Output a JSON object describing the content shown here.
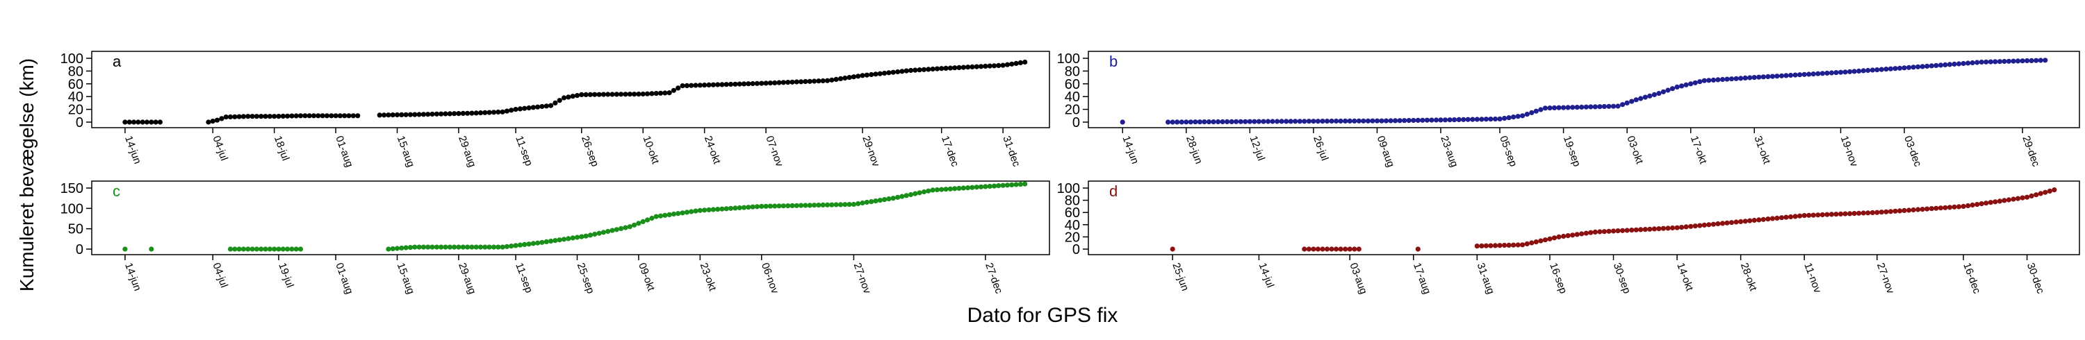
{
  "figure": {
    "ylabel": "Kumuleret bevægelse (km)",
    "xlabel": "Dato for GPS fix"
  },
  "chart_data": [
    {
      "type": "scatter",
      "panel_label": "a",
      "color": "#000000",
      "ylim": [
        0,
        100
      ],
      "yticks": [
        0,
        20,
        40,
        60,
        80,
        100
      ],
      "xlim": [
        "2021-06-08",
        "2022-01-09"
      ],
      "xticks": [
        "14-jun",
        "04-jul",
        "18-jul",
        "01-aug",
        "15-aug",
        "29-aug",
        "11-sep",
        "26-sep",
        "10-okt",
        "24-okt",
        "07-nov",
        "29-nov",
        "17-dec",
        "31-dec"
      ],
      "xtick_dates": [
        "2021-06-14",
        "2021-07-04",
        "2021-07-18",
        "2021-08-01",
        "2021-08-15",
        "2021-08-29",
        "2021-09-11",
        "2021-09-26",
        "2021-10-10",
        "2021-10-24",
        "2021-11-07",
        "2021-11-29",
        "2021-12-17",
        "2021-12-31"
      ],
      "anchors": [
        [
          "2021-06-14",
          0
        ],
        [
          "2021-06-18",
          0
        ],
        [
          "2021-06-20",
          0
        ],
        [
          "2021-06-22",
          0
        ],
        [
          "2021-07-03",
          0
        ],
        [
          "2021-07-05",
          3
        ],
        [
          "2021-07-07",
          8
        ],
        [
          "2021-07-12",
          9
        ],
        [
          "2021-07-18",
          9
        ],
        [
          "2021-07-24",
          10
        ],
        [
          "2021-08-01",
          10
        ],
        [
          "2021-08-06",
          10
        ],
        [
          "2021-08-11",
          11
        ],
        [
          "2021-08-20",
          12
        ],
        [
          "2021-09-01",
          14
        ],
        [
          "2021-09-08",
          16
        ],
        [
          "2021-09-11",
          20
        ],
        [
          "2021-09-19",
          26
        ],
        [
          "2021-09-22",
          38
        ],
        [
          "2021-09-26",
          43
        ],
        [
          "2021-10-10",
          44
        ],
        [
          "2021-10-16",
          46
        ],
        [
          "2021-10-19",
          57
        ],
        [
          "2021-10-24",
          58
        ],
        [
          "2021-11-07",
          61
        ],
        [
          "2021-11-21",
          65
        ],
        [
          "2021-11-29",
          73
        ],
        [
          "2021-12-10",
          81
        ],
        [
          "2021-12-17",
          84
        ],
        [
          "2021-12-31",
          89
        ],
        [
          "2022-01-05",
          94
        ]
      ],
      "gap_after": [
        "2021-06-22",
        "2021-07-14",
        "2021-07-27",
        "2021-08-06"
      ]
    },
    {
      "type": "scatter",
      "panel_label": "b",
      "color": "#1f1f8f",
      "ylim": [
        0,
        100
      ],
      "yticks": [
        0,
        20,
        40,
        60,
        80,
        100
      ],
      "xlim": [
        "2021-06-08",
        "2022-01-09"
      ],
      "xticks": [
        "14-jun",
        "28-jun",
        "12-jul",
        "26-jul",
        "09-aug",
        "23-aug",
        "05-sep",
        "19-sep",
        "03-okt",
        "17-okt",
        "31-okt",
        "19-nov",
        "03-dec",
        "29-dec"
      ],
      "xtick_dates": [
        "2021-06-14",
        "2021-06-28",
        "2021-07-12",
        "2021-07-26",
        "2021-08-09",
        "2021-08-23",
        "2021-09-05",
        "2021-09-19",
        "2021-10-03",
        "2021-10-17",
        "2021-10-31",
        "2021-11-19",
        "2021-12-03",
        "2021-12-29"
      ],
      "anchors": [
        [
          "2021-06-14",
          0
        ],
        [
          "2021-06-24",
          0
        ],
        [
          "2021-07-15",
          1
        ],
        [
          "2021-08-10",
          2
        ],
        [
          "2021-08-20",
          3
        ],
        [
          "2021-09-05",
          5
        ],
        [
          "2021-09-10",
          10
        ],
        [
          "2021-09-15",
          22
        ],
        [
          "2021-10-01",
          25
        ],
        [
          "2021-10-05",
          35
        ],
        [
          "2021-10-10",
          45
        ],
        [
          "2021-10-14",
          55
        ],
        [
          "2021-10-20",
          65
        ],
        [
          "2021-10-31",
          70
        ],
        [
          "2021-11-19",
          78
        ],
        [
          "2021-12-03",
          85
        ],
        [
          "2021-12-20",
          94
        ],
        [
          "2022-01-03",
          97
        ]
      ],
      "gap_after": [
        "2021-06-14",
        "2021-07-18",
        "2021-07-22"
      ]
    },
    {
      "type": "scatter",
      "panel_label": "c",
      "color": "#1a8f1a",
      "ylim": [
        0,
        150
      ],
      "yticks": [
        0,
        50,
        100,
        150
      ],
      "xlim": [
        "2021-06-08",
        "2022-01-09"
      ],
      "xticks": [
        "14-jun",
        "04-jul",
        "19-jul",
        "01-aug",
        "15-aug",
        "29-aug",
        "11-sep",
        "25-sep",
        "09-okt",
        "23-okt",
        "06-nov",
        "27-nov",
        "27-dec"
      ],
      "xtick_dates": [
        "2021-06-14",
        "2021-07-04",
        "2021-07-19",
        "2021-08-01",
        "2021-08-15",
        "2021-08-29",
        "2021-09-11",
        "2021-09-25",
        "2021-10-09",
        "2021-10-23",
        "2021-11-06",
        "2021-11-27",
        "2021-12-27"
      ],
      "anchors": [
        [
          "2021-06-14",
          0
        ],
        [
          "2021-06-20",
          0
        ],
        [
          "2021-07-08",
          0
        ],
        [
          "2021-07-24",
          0
        ],
        [
          "2021-08-13",
          0
        ],
        [
          "2021-08-19",
          5
        ],
        [
          "2021-09-08",
          5
        ],
        [
          "2021-09-16",
          15
        ],
        [
          "2021-09-27",
          32
        ],
        [
          "2021-10-07",
          55
        ],
        [
          "2021-10-13",
          80
        ],
        [
          "2021-10-23",
          95
        ],
        [
          "2021-11-06",
          105
        ],
        [
          "2021-11-27",
          110
        ],
        [
          "2021-12-06",
          125
        ],
        [
          "2021-12-15",
          145
        ],
        [
          "2022-01-05",
          160
        ]
      ],
      "gap_after": [
        "2021-06-14",
        "2021-06-20",
        "2021-07-16",
        "2021-07-24",
        "2021-08-17",
        "2021-09-10"
      ]
    },
    {
      "type": "scatter",
      "panel_label": "d",
      "color": "#8b1010",
      "ylim": [
        0,
        100
      ],
      "yticks": [
        0,
        20,
        40,
        60,
        80,
        100
      ],
      "xlim": [
        "2021-06-08",
        "2022-01-09"
      ],
      "xticks": [
        "25-jun",
        "14-jul",
        "03-aug",
        "17-aug",
        "31-aug",
        "16-sep",
        "30-sep",
        "14-okt",
        "28-okt",
        "11-nov",
        "27-nov",
        "16-dec",
        "30-dec"
      ],
      "xtick_dates": [
        "2021-06-25",
        "2021-07-14",
        "2021-08-03",
        "2021-08-17",
        "2021-08-31",
        "2021-09-16",
        "2021-09-30",
        "2021-10-14",
        "2021-10-28",
        "2021-11-11",
        "2021-11-27",
        "2021-12-16",
        "2021-12-30"
      ],
      "anchors": [
        [
          "2021-06-25",
          0
        ],
        [
          "2021-07-24",
          0
        ],
        [
          "2021-08-05",
          0
        ],
        [
          "2021-08-18",
          0
        ],
        [
          "2021-08-31",
          5
        ],
        [
          "2021-09-10",
          7
        ],
        [
          "2021-09-18",
          20
        ],
        [
          "2021-09-26",
          28
        ],
        [
          "2021-10-14",
          35
        ],
        [
          "2021-10-28",
          45
        ],
        [
          "2021-11-11",
          55
        ],
        [
          "2021-11-27",
          60
        ],
        [
          "2021-12-16",
          70
        ],
        [
          "2021-12-30",
          85
        ],
        [
          "2022-01-05",
          97
        ]
      ],
      "gap_after": [
        "2021-06-25",
        "2021-07-26",
        "2021-07-28",
        "2021-08-01",
        "2021-08-05",
        "2021-08-09",
        "2021-08-14",
        "2021-08-18"
      ]
    }
  ]
}
